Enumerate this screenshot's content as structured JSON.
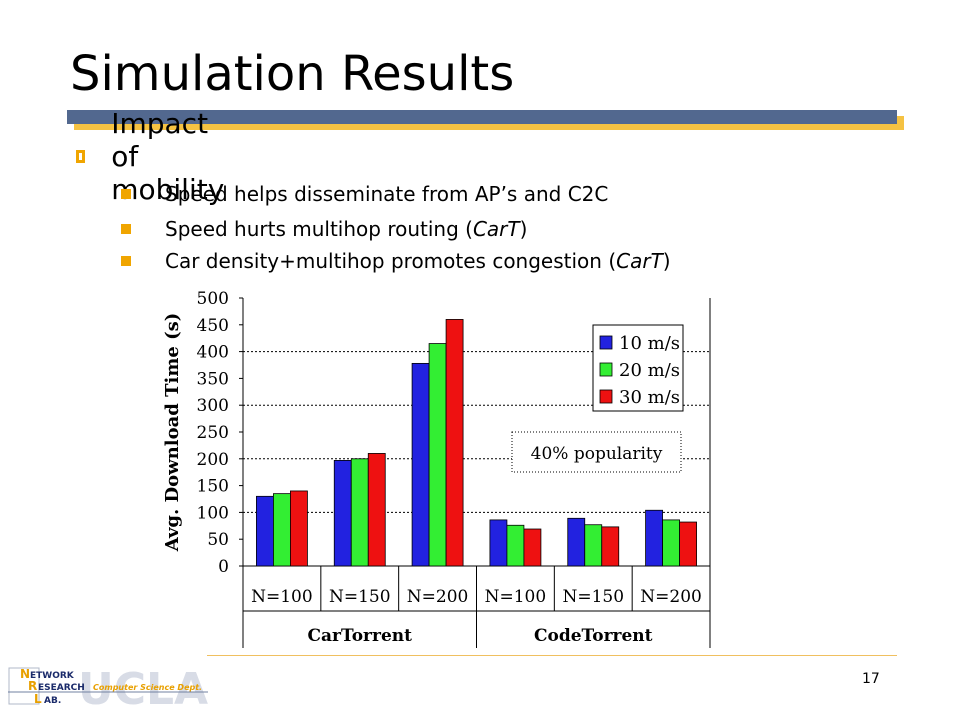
{
  "slide": {
    "title": "Simulation Results",
    "bullet": "Impact of mobility",
    "subbullets": [
      {
        "pre": "Speed helps disseminate from AP’s and C2C",
        "em": "",
        "post": ""
      },
      {
        "pre": "Speed hurts multihop routing (",
        "em": "CarT",
        "post": ")"
      },
      {
        "pre": "Car density+multihop promotes congestion (",
        "em": "CarT",
        "post": ")"
      }
    ],
    "page_number": "17"
  },
  "logo": {
    "line1": "ETWORK",
    "line2": "ESEARCH",
    "line3": "AB.",
    "initial1": "N",
    "initial2": "R",
    "initial3": "L",
    "dept": "Computer Science Dept.",
    "watermark": "UCLA"
  },
  "colors": {
    "accent_orange": "#f0a500",
    "title_bar": "#52688f",
    "title_bar_shadow": "#f5c242"
  },
  "chart_data": {
    "type": "bar",
    "ylabel": "Avg. Download Time (s)",
    "ylim": [
      0,
      500
    ],
    "yticks": [
      "0",
      "50",
      "100",
      "150",
      "200",
      "250",
      "300",
      "350",
      "400",
      "450",
      "500"
    ],
    "categories": [
      "N=100",
      "N=150",
      "N=200",
      "N=100",
      "N=150",
      "N=200"
    ],
    "groups": [
      {
        "label": "CarTorrent",
        "span": 3
      },
      {
        "label": "CodeTorrent",
        "span": 3
      }
    ],
    "series": [
      {
        "name": "10 m/s",
        "color": "#2222e0",
        "values": [
          130,
          197,
          378,
          86,
          89,
          104
        ]
      },
      {
        "name": "20 m/s",
        "color": "#33ee33",
        "values": [
          135,
          200,
          415,
          76,
          77,
          86
        ]
      },
      {
        "name": "30 m/s",
        "color": "#ee1111",
        "values": [
          140,
          210,
          460,
          69,
          73,
          82
        ]
      }
    ],
    "annotation": "40% popularity",
    "grid": true,
    "legend_position": "top-right"
  }
}
